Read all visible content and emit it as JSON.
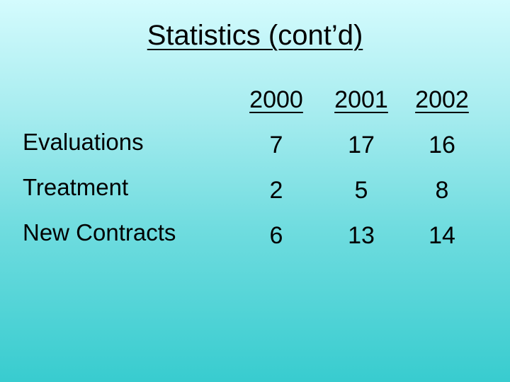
{
  "slide": {
    "title": "Statistics (cont’d)"
  },
  "table": {
    "columns": [
      "2000",
      "2001",
      "2002"
    ],
    "rows": [
      {
        "label": "Evaluations",
        "values": [
          "7",
          "17",
          "16"
        ]
      },
      {
        "label": "Treatment",
        "values": [
          "2",
          "5",
          "8"
        ]
      },
      {
        "label": "New Contracts",
        "values": [
          "6",
          "13",
          "14"
        ]
      }
    ]
  }
}
